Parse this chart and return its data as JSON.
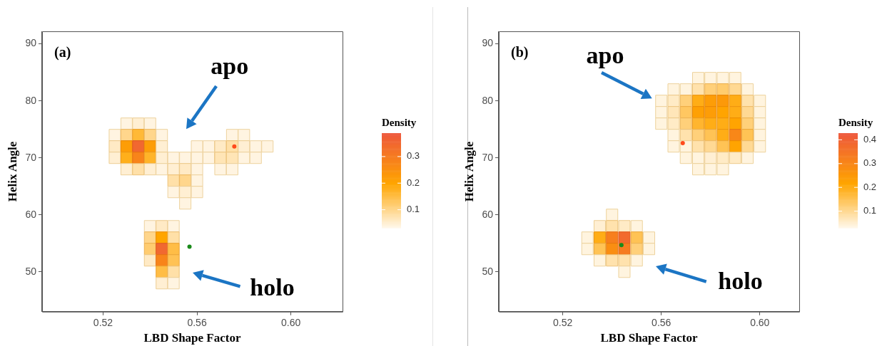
{
  "chart_data": [
    {
      "type": "scatter",
      "xlabel": "LBD Shape Factor",
      "ylabel": "Helix Angle",
      "clabel": "Density",
      "xlim": [
        0.494,
        0.622
      ],
      "xticks": [
        {
          "value": 0.52,
          "label": "0.52"
        },
        {
          "value": 0.56,
          "label": "0.56"
        },
        {
          "value": 0.6,
          "label": "0.60"
        }
      ],
      "ylim": [
        43.0,
        92.2
      ],
      "yticks": [
        50,
        60,
        70,
        80,
        90
      ],
      "clim": [
        0.032,
        0.388
      ],
      "cticks": [
        0.1,
        0.2,
        0.3
      ],
      "annotations": [
        "(a)",
        "apo",
        "holo"
      ],
      "series": [
        {
          "marker": "square",
          "x": [
            0.53,
            0.535,
            0.54,
            0.525,
            0.53,
            0.535,
            0.54,
            0.545,
            0.575,
            0.58,
            0.525,
            0.53,
            0.535,
            0.54,
            0.545,
            0.56,
            0.565,
            0.57,
            0.575,
            0.58,
            0.585,
            0.59,
            0.525,
            0.53,
            0.535,
            0.54,
            0.545,
            0.55,
            0.555,
            0.56,
            0.565,
            0.57,
            0.575,
            0.58,
            0.585,
            0.53,
            0.535,
            0.54,
            0.545,
            0.55,
            0.555,
            0.56,
            0.57,
            0.575,
            0.55,
            0.555,
            0.56,
            0.55,
            0.555,
            0.56,
            0.555,
            0.54,
            0.545,
            0.55,
            0.54,
            0.545,
            0.55,
            0.54,
            0.545,
            0.55,
            0.54,
            0.545,
            0.55,
            0.545,
            0.55,
            0.545,
            0.55
          ],
          "values": [
            76,
            76,
            76,
            74,
            74,
            74,
            74,
            74,
            74,
            74,
            72,
            72,
            72,
            72,
            72,
            72,
            72,
            72,
            72,
            72,
            72,
            72,
            70,
            70,
            70,
            70,
            70,
            70,
            70,
            70,
            70,
            70,
            70,
            70,
            70,
            68,
            68,
            68,
            68,
            68,
            68,
            68,
            68,
            68,
            66,
            66,
            66,
            64,
            64,
            64,
            62,
            58,
            58,
            58,
            56,
            56,
            56,
            54,
            54,
            54,
            52,
            52,
            52,
            50,
            50,
            48,
            48
          ],
          "cvalues": [
            0.04,
            0.05,
            0.04,
            0.04,
            0.1,
            0.16,
            0.1,
            0.04,
            0.04,
            0.04,
            0.06,
            0.22,
            0.35,
            0.22,
            0.05,
            0.04,
            0.04,
            0.06,
            0.08,
            0.05,
            0.04,
            0.04,
            0.05,
            0.18,
            0.28,
            0.17,
            0.05,
            0.04,
            0.04,
            0.04,
            0.04,
            0.07,
            0.07,
            0.04,
            0.04,
            0.05,
            0.08,
            0.05,
            0.04,
            0.05,
            0.06,
            0.04,
            0.04,
            0.04,
            0.08,
            0.1,
            0.04,
            0.04,
            0.05,
            0.04,
            0.04,
            0.04,
            0.06,
            0.04,
            0.1,
            0.2,
            0.08,
            0.12,
            0.35,
            0.15,
            0.06,
            0.28,
            0.14,
            0.15,
            0.08,
            0.05,
            0.04
          ],
          "colors": [
            "#fff4e1",
            "#ffefd3",
            "#fff4e1",
            "#fff4e1",
            "#ffd68c",
            "#ffb937",
            "#ffd68c",
            "#fff4e1",
            "#fff4e1",
            "#fff4e1",
            "#ffeac5",
            "#fd9d07",
            "#f16830",
            "#fd9d07",
            "#ffefd3",
            "#fff4e1",
            "#fff4e1",
            "#ffeac5",
            "#ffe0a8",
            "#ffefd3",
            "#fff4e1",
            "#fff4e1",
            "#ffefd3",
            "#ffaf1b",
            "#f8841a",
            "#ffb429",
            "#ffefd3",
            "#fff4e1",
            "#fff4e1",
            "#fff4e1",
            "#fff4e1",
            "#ffe5b6",
            "#ffe5b6",
            "#fff4e1",
            "#fff4e1",
            "#ffefd3",
            "#ffe0a8",
            "#ffefd3",
            "#fff4e1",
            "#ffefd3",
            "#ffeac5",
            "#fff4e1",
            "#fff4e1",
            "#fff4e1",
            "#ffe0a8",
            "#ffd68c",
            "#fff4e1",
            "#fff4e1",
            "#ffefd3",
            "#fff4e1",
            "#fff4e1",
            "#fff4e1",
            "#ffeac5",
            "#fff4e1",
            "#ffd68c",
            "#ffa500",
            "#ffe0a8",
            "#ffcc70",
            "#f16830",
            "#ffbd46",
            "#ffeac5",
            "#f8841a",
            "#ffc254",
            "#ffbd46",
            "#ffe0a8",
            "#ffefd3",
            "#fff4e1"
          ]
        },
        {
          "marker": "circle",
          "color": "#ff4a1c",
          "x": [
            0.5759
          ],
          "values": [
            72
          ]
        },
        {
          "marker": "circle",
          "color": "#1a8a1a",
          "x": [
            0.5568
          ],
          "values": [
            54.4
          ]
        }
      ]
    },
    {
      "type": "scatter",
      "xlabel": "LBD Shape Factor",
      "ylabel": "Helix Angle",
      "clabel": "Density",
      "xlim": [
        0.494,
        0.616
      ],
      "xticks": [
        {
          "value": 0.52,
          "label": "0.52"
        },
        {
          "value": 0.56,
          "label": "0.56"
        },
        {
          "value": 0.6,
          "label": "0.60"
        }
      ],
      "ylim": [
        43.0,
        92.2
      ],
      "yticks": [
        50,
        60,
        70,
        80,
        90
      ],
      "clim": [
        0.03,
        0.428
      ],
      "cticks": [
        0.1,
        0.2,
        0.3,
        0.4
      ],
      "annotations": [
        "(b)",
        "apo",
        "holo"
      ],
      "series": [
        {
          "marker": "square",
          "x": [
            0.575,
            0.58,
            0.585,
            0.59,
            0.565,
            0.57,
            0.575,
            0.58,
            0.585,
            0.59,
            0.595,
            0.56,
            0.565,
            0.57,
            0.575,
            0.58,
            0.585,
            0.59,
            0.595,
            0.6,
            0.56,
            0.565,
            0.57,
            0.575,
            0.58,
            0.585,
            0.59,
            0.595,
            0.6,
            0.56,
            0.565,
            0.57,
            0.575,
            0.58,
            0.585,
            0.59,
            0.595,
            0.6,
            0.565,
            0.57,
            0.575,
            0.58,
            0.585,
            0.59,
            0.595,
            0.6,
            0.565,
            0.57,
            0.575,
            0.58,
            0.585,
            0.59,
            0.595,
            0.6,
            0.57,
            0.575,
            0.58,
            0.585,
            0.59,
            0.595,
            0.575,
            0.58,
            0.585,
            0.54,
            0.535,
            0.54,
            0.545,
            0.55,
            0.53,
            0.535,
            0.54,
            0.545,
            0.55,
            0.555,
            0.53,
            0.535,
            0.54,
            0.545,
            0.55,
            0.555,
            0.535,
            0.54,
            0.545,
            0.55,
            0.545
          ],
          "values": [
            84,
            84,
            84,
            84,
            82,
            82,
            82,
            82,
            82,
            82,
            82,
            80,
            80,
            80,
            80,
            80,
            80,
            80,
            80,
            80,
            78,
            78,
            78,
            78,
            78,
            78,
            78,
            78,
            78,
            76,
            76,
            76,
            76,
            76,
            76,
            76,
            76,
            76,
            74,
            74,
            74,
            74,
            74,
            74,
            74,
            74,
            72,
            72,
            72,
            72,
            72,
            72,
            72,
            72,
            70,
            70,
            70,
            70,
            70,
            70,
            68,
            68,
            68,
            60,
            58,
            58,
            58,
            58,
            56,
            56,
            56,
            56,
            56,
            56,
            54,
            54,
            54,
            54,
            54,
            54,
            52,
            52,
            52,
            52,
            50
          ],
          "cvalues": [
            0.04,
            0.04,
            0.04,
            0.04,
            0.04,
            0.04,
            0.08,
            0.12,
            0.13,
            0.1,
            0.04,
            0.04,
            0.06,
            0.12,
            0.2,
            0.24,
            0.25,
            0.2,
            0.08,
            0.04,
            0.04,
            0.07,
            0.14,
            0.23,
            0.24,
            0.22,
            0.2,
            0.1,
            0.04,
            0.04,
            0.06,
            0.12,
            0.18,
            0.2,
            0.2,
            0.22,
            0.12,
            0.04,
            0.04,
            0.08,
            0.12,
            0.15,
            0.2,
            0.3,
            0.15,
            0.04,
            0.04,
            0.04,
            0.08,
            0.1,
            0.15,
            0.22,
            0.1,
            0.04,
            0.04,
            0.04,
            0.05,
            0.06,
            0.06,
            0.04,
            0.04,
            0.04,
            0.04,
            0.04,
            0.05,
            0.08,
            0.06,
            0.04,
            0.04,
            0.2,
            0.32,
            0.38,
            0.15,
            0.04,
            0.04,
            0.15,
            0.28,
            0.33,
            0.12,
            0.04,
            0.04,
            0.08,
            0.08,
            0.04,
            0.04
          ],
          "colors": [
            "#fff4df",
            "#fff4df",
            "#fff4df",
            "#fff4df",
            "#fff4df",
            "#fff4df",
            "#ffe2ad",
            "#ffd07a",
            "#ffcc6e",
            "#ffd994",
            "#fff4df",
            "#fff4df",
            "#ffebc6",
            "#ffd07a",
            "#ffad16",
            "#fd9d07",
            "#fc9909",
            "#ffad16",
            "#ffe2ad",
            "#fff4df",
            "#fff4df",
            "#ffe6b9",
            "#ffc761",
            "#fea004",
            "#fd9d07",
            "#ffa401",
            "#ffad16",
            "#ffd994",
            "#fff4df",
            "#fff4df",
            "#ffebc6",
            "#ffd07a",
            "#ffb52f",
            "#ffad16",
            "#ffad16",
            "#ffa401",
            "#ffd07a",
            "#fff4df",
            "#fff4df",
            "#ffe2ad",
            "#ffd07a",
            "#ffc355",
            "#ffad16",
            "#f88718",
            "#ffc355",
            "#fff4df",
            "#fff4df",
            "#fff4df",
            "#ffe2ad",
            "#ffd994",
            "#ffc355",
            "#ffa401",
            "#ffd994",
            "#fff4df",
            "#fff4df",
            "#fff4df",
            "#ffefd3",
            "#ffebc6",
            "#ffebc6",
            "#fff4df",
            "#fff4df",
            "#fff4df",
            "#fff4df",
            "#fff4df",
            "#ffefd3",
            "#ffe2ad",
            "#ffebc6",
            "#fff4df",
            "#fff4df",
            "#ffad16",
            "#f77f1d",
            "#f26a2e",
            "#ffc355",
            "#fff4df",
            "#fff4df",
            "#ffc355",
            "#fa8e12",
            "#f67c20",
            "#ffd07a",
            "#fff4df",
            "#fff4df",
            "#ffe2ad",
            "#ffe2ad",
            "#fff4df",
            "#fff4df"
          ]
        },
        {
          "marker": "circle",
          "color": "#ff4a1c",
          "x": [
            0.5687
          ],
          "values": [
            72.6
          ]
        },
        {
          "marker": "circle",
          "color": "#1a8a1a",
          "x": [
            0.5438
          ],
          "values": [
            54.7
          ]
        }
      ]
    }
  ]
}
